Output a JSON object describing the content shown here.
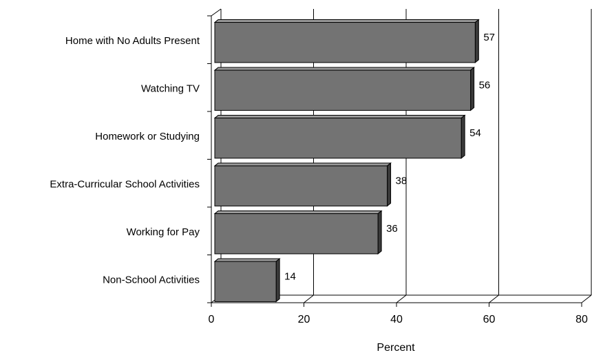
{
  "chart_data": {
    "type": "bar",
    "orientation": "horizontal",
    "style": "3d",
    "categories": [
      "Home with No Adults Present",
      "Watching TV",
      "Homework or Studying",
      "Extra-Curricular School Activities",
      "Working for Pay",
      "Non-School Activities"
    ],
    "values": [
      57,
      56,
      54,
      38,
      36,
      14
    ],
    "value_labels": [
      "57",
      "56",
      "54",
      "38",
      "36",
      "14"
    ],
    "xlabel": "Percent",
    "xlim": [
      0,
      80
    ],
    "xticks": [
      0,
      20,
      40,
      60,
      80
    ],
    "xtick_labels": [
      "0",
      "20",
      "40",
      "60",
      "80"
    ],
    "grid": "vertical",
    "bar_color": "#737373",
    "legend": "none"
  }
}
